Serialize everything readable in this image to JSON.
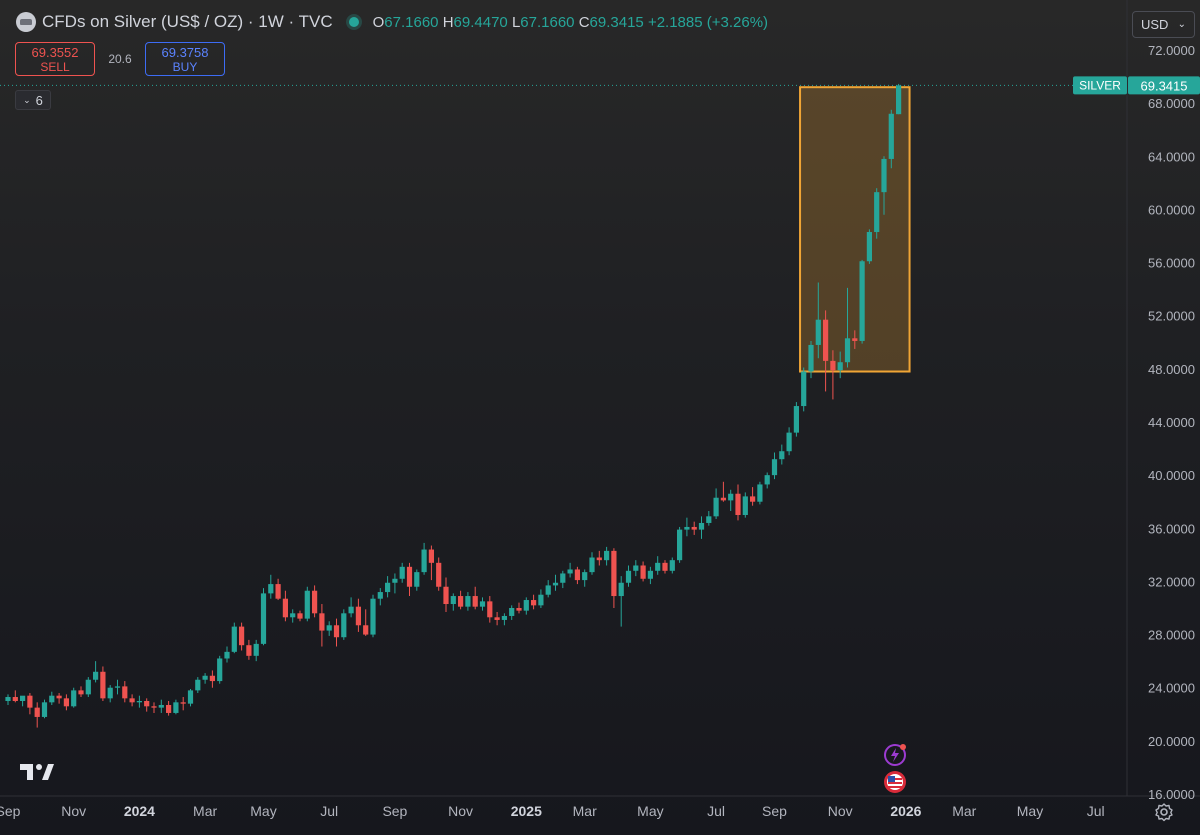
{
  "header": {
    "symbol_title": "CFDs on Silver (US$ / OZ) · 1W · TVC",
    "open_label": "O",
    "open_value": "67.1660",
    "high_label": "H",
    "high_value": "69.4470",
    "low_label": "L",
    "low_value": "67.1660",
    "close_label": "C",
    "close_value": "69.3415",
    "change": "+2.1885 (+3.26%)"
  },
  "trade": {
    "sell_price": "69.3552",
    "sell_label": "SELL",
    "spread": "20.6",
    "buy_price": "69.3758",
    "buy_label": "BUY"
  },
  "indicators_toggle": {
    "count": "6"
  },
  "currency": {
    "label": "USD"
  },
  "price_badge": {
    "label": "SILVER",
    "value": "69.3415"
  },
  "colors": {
    "up": "#26a69a",
    "down": "#ef5350",
    "highlight": "#f0a535",
    "axis_text": "#b2b5be",
    "background": "#1f2023"
  },
  "chart_data": {
    "type": "candlestick",
    "interval": "1W",
    "ylim": [
      16,
      72
    ],
    "y_ticks": [
      "72.0000",
      "68.0000",
      "64.0000",
      "60.0000",
      "56.0000",
      "52.0000",
      "48.0000",
      "44.0000",
      "40.0000",
      "36.0000",
      "32.0000",
      "28.0000",
      "24.0000",
      "20.0000",
      "16.0000"
    ],
    "y_tick_values": [
      72,
      68,
      64,
      60,
      56,
      52,
      48,
      44,
      40,
      36,
      32,
      28,
      24,
      20,
      16
    ],
    "x_ticks": [
      {
        "label": "Sep",
        "week": 0,
        "bold": false
      },
      {
        "label": "Nov",
        "week": 9,
        "bold": false
      },
      {
        "label": "2024",
        "week": 18,
        "bold": true
      },
      {
        "label": "Mar",
        "week": 27,
        "bold": false
      },
      {
        "label": "May",
        "week": 35,
        "bold": false
      },
      {
        "label": "Jul",
        "week": 44,
        "bold": false
      },
      {
        "label": "Sep",
        "week": 53,
        "bold": false
      },
      {
        "label": "Nov",
        "week": 62,
        "bold": false
      },
      {
        "label": "2025",
        "week": 71,
        "bold": true
      },
      {
        "label": "Mar",
        "week": 79,
        "bold": false
      },
      {
        "label": "May",
        "week": 88,
        "bold": false
      },
      {
        "label": "Jul",
        "week": 97,
        "bold": false
      },
      {
        "label": "Sep",
        "week": 105,
        "bold": false
      },
      {
        "label": "Nov",
        "week": 114,
        "bold": false
      },
      {
        "label": "2026",
        "week": 123,
        "bold": true
      },
      {
        "label": "Mar",
        "week": 131,
        "bold": false
      },
      {
        "label": "May",
        "week": 140,
        "bold": false
      },
      {
        "label": "Jul",
        "week": 149,
        "bold": false
      }
    ],
    "last_price": 69.3415,
    "highlight_box": {
      "week_start": 108.5,
      "week_end": 123.5,
      "price_low": 47.8,
      "price_high": 69.2
    },
    "candles": [
      [
        23.0,
        23.5,
        22.7,
        23.3
      ],
      [
        23.3,
        23.8,
        22.9,
        23.0
      ],
      [
        23.0,
        23.3,
        22.6,
        23.4
      ],
      [
        23.4,
        23.6,
        22.0,
        22.5
      ],
      [
        22.5,
        22.9,
        21.0,
        21.8
      ],
      [
        21.8,
        23.1,
        21.7,
        22.9
      ],
      [
        22.9,
        23.7,
        22.7,
        23.4
      ],
      [
        23.4,
        23.6,
        22.8,
        23.2
      ],
      [
        23.2,
        23.5,
        22.3,
        22.6
      ],
      [
        22.6,
        24.0,
        22.5,
        23.8
      ],
      [
        23.8,
        24.1,
        23.3,
        23.5
      ],
      [
        23.5,
        24.8,
        23.3,
        24.6
      ],
      [
        24.6,
        26.0,
        24.4,
        25.2
      ],
      [
        25.2,
        25.6,
        23.0,
        23.2
      ],
      [
        23.2,
        24.2,
        22.9,
        24.0
      ],
      [
        24.0,
        24.6,
        23.5,
        24.1
      ],
      [
        24.1,
        24.5,
        22.9,
        23.2
      ],
      [
        23.2,
        23.5,
        22.6,
        22.9
      ],
      [
        22.9,
        23.4,
        22.5,
        23.0
      ],
      [
        23.0,
        23.2,
        22.2,
        22.6
      ],
      [
        22.6,
        22.9,
        22.1,
        22.5
      ],
      [
        22.5,
        23.1,
        22.1,
        22.7
      ],
      [
        22.7,
        23.0,
        21.9,
        22.1
      ],
      [
        22.1,
        23.1,
        22.0,
        22.9
      ],
      [
        22.9,
        23.3,
        22.3,
        22.8
      ],
      [
        22.8,
        23.9,
        22.6,
        23.8
      ],
      [
        23.8,
        24.8,
        23.6,
        24.6
      ],
      [
        24.6,
        25.1,
        24.3,
        24.9
      ],
      [
        24.9,
        25.3,
        24.0,
        24.5
      ],
      [
        24.5,
        26.4,
        24.3,
        26.2
      ],
      [
        26.2,
        27.1,
        25.9,
        26.7
      ],
      [
        26.7,
        28.9,
        26.6,
        28.6
      ],
      [
        28.6,
        28.9,
        26.8,
        27.2
      ],
      [
        27.2,
        27.6,
        26.1,
        26.4
      ],
      [
        26.4,
        27.6,
        26.0,
        27.3
      ],
      [
        27.3,
        31.5,
        27.2,
        31.1
      ],
      [
        31.1,
        32.5,
        30.7,
        31.8
      ],
      [
        31.8,
        32.2,
        30.6,
        30.7
      ],
      [
        30.7,
        31.3,
        29.0,
        29.3
      ],
      [
        29.3,
        29.9,
        28.9,
        29.6
      ],
      [
        29.6,
        29.8,
        29.0,
        29.2
      ],
      [
        29.2,
        31.6,
        29.0,
        31.3
      ],
      [
        31.3,
        31.7,
        29.3,
        29.6
      ],
      [
        29.6,
        30.3,
        27.1,
        28.3
      ],
      [
        28.3,
        29.0,
        27.9,
        28.7
      ],
      [
        28.7,
        29.2,
        27.1,
        27.8
      ],
      [
        27.8,
        29.9,
        27.6,
        29.6
      ],
      [
        29.6,
        30.8,
        29.3,
        30.1
      ],
      [
        30.1,
        30.7,
        28.2,
        28.7
      ],
      [
        28.7,
        29.9,
        27.9,
        28.0
      ],
      [
        28.0,
        31.0,
        27.8,
        30.7
      ],
      [
        30.7,
        31.5,
        30.2,
        31.2
      ],
      [
        31.2,
        32.4,
        30.8,
        31.9
      ],
      [
        31.9,
        32.6,
        31.1,
        32.2
      ],
      [
        32.2,
        33.4,
        31.9,
        33.1
      ],
      [
        33.1,
        33.4,
        30.9,
        31.6
      ],
      [
        31.6,
        32.9,
        31.3,
        32.7
      ],
      [
        32.7,
        34.9,
        32.5,
        34.4
      ],
      [
        34.4,
        34.7,
        32.1,
        33.4
      ],
      [
        33.4,
        33.8,
        31.3,
        31.6
      ],
      [
        31.6,
        32.3,
        29.7,
        30.3
      ],
      [
        30.3,
        31.1,
        29.8,
        30.9
      ],
      [
        30.9,
        31.3,
        29.9,
        30.1
      ],
      [
        30.1,
        31.2,
        29.8,
        30.9
      ],
      [
        30.9,
        31.6,
        29.9,
        30.1
      ],
      [
        30.1,
        30.8,
        29.8,
        30.5
      ],
      [
        30.5,
        30.9,
        28.9,
        29.3
      ],
      [
        29.3,
        29.7,
        28.7,
        29.1
      ],
      [
        29.1,
        29.6,
        28.7,
        29.4
      ],
      [
        29.4,
        30.2,
        29.1,
        30.0
      ],
      [
        30.0,
        30.4,
        29.6,
        29.8
      ],
      [
        29.8,
        30.8,
        29.5,
        30.6
      ],
      [
        30.6,
        31.0,
        29.9,
        30.2
      ],
      [
        30.2,
        31.4,
        30.0,
        31.0
      ],
      [
        31.0,
        32.1,
        30.8,
        31.7
      ],
      [
        31.7,
        32.5,
        31.3,
        31.9
      ],
      [
        31.9,
        32.8,
        31.5,
        32.6
      ],
      [
        32.6,
        33.4,
        32.3,
        32.9
      ],
      [
        32.9,
        33.1,
        31.8,
        32.1
      ],
      [
        32.1,
        32.9,
        31.6,
        32.7
      ],
      [
        32.7,
        34.2,
        32.5,
        33.8
      ],
      [
        33.8,
        34.3,
        33.2,
        33.6
      ],
      [
        33.6,
        34.6,
        33.2,
        34.3
      ],
      [
        34.3,
        34.5,
        30.0,
        30.9
      ],
      [
        30.9,
        32.4,
        28.6,
        31.9
      ],
      [
        31.9,
        33.2,
        31.6,
        32.8
      ],
      [
        32.8,
        33.6,
        32.4,
        33.2
      ],
      [
        33.2,
        33.5,
        32.0,
        32.2
      ],
      [
        32.2,
        33.1,
        31.8,
        32.8
      ],
      [
        32.8,
        33.9,
        32.5,
        33.4
      ],
      [
        33.4,
        33.6,
        32.6,
        32.8
      ],
      [
        32.8,
        33.8,
        32.6,
        33.6
      ],
      [
        33.6,
        36.1,
        33.4,
        35.9
      ],
      [
        35.9,
        36.8,
        35.4,
        36.1
      ],
      [
        36.1,
        36.5,
        35.5,
        35.9
      ],
      [
        35.9,
        36.9,
        35.2,
        36.4
      ],
      [
        36.4,
        37.3,
        36.2,
        36.9
      ],
      [
        36.9,
        39.0,
        36.7,
        38.3
      ],
      [
        38.3,
        39.5,
        38.0,
        38.1
      ],
      [
        38.1,
        38.9,
        37.3,
        38.6
      ],
      [
        38.6,
        39.3,
        36.6,
        37.0
      ],
      [
        37.0,
        38.7,
        36.8,
        38.4
      ],
      [
        38.4,
        39.1,
        37.7,
        38.0
      ],
      [
        38.0,
        39.5,
        37.8,
        39.3
      ],
      [
        39.3,
        40.2,
        39.0,
        40.0
      ],
      [
        40.0,
        41.7,
        39.7,
        41.2
      ],
      [
        41.2,
        42.3,
        40.8,
        41.8
      ],
      [
        41.8,
        43.6,
        41.5,
        43.2
      ],
      [
        43.2,
        45.5,
        42.9,
        45.2
      ],
      [
        45.2,
        48.1,
        44.8,
        47.8
      ],
      [
        47.8,
        50.1,
        47.3,
        49.8
      ],
      [
        49.8,
        54.5,
        48.8,
        51.7
      ],
      [
        51.7,
        52.4,
        46.3,
        48.6
      ],
      [
        48.6,
        49.4,
        45.7,
        47.9
      ],
      [
        47.9,
        49.3,
        47.3,
        48.5
      ],
      [
        48.5,
        54.1,
        48.1,
        50.3
      ],
      [
        50.3,
        50.9,
        49.5,
        50.1
      ],
      [
        50.1,
        56.2,
        49.9,
        56.1
      ],
      [
        56.1,
        58.5,
        55.9,
        58.3
      ],
      [
        58.3,
        61.6,
        57.8,
        61.3
      ],
      [
        61.3,
        64.0,
        59.6,
        63.8
      ],
      [
        63.8,
        67.5,
        63.1,
        67.2
      ],
      [
        67.17,
        69.447,
        67.166,
        69.3415
      ]
    ]
  }
}
